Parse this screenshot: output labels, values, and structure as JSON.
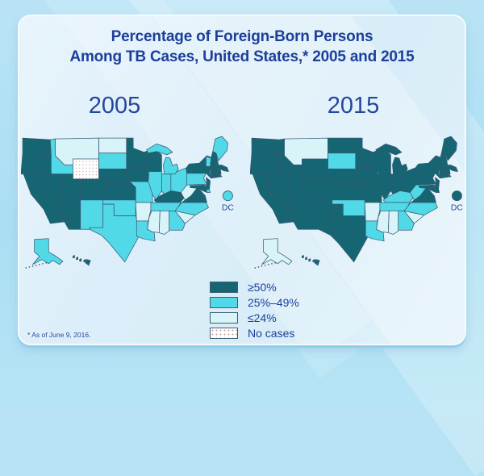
{
  "title": {
    "line1": "Percentage of Foreign-Born Persons",
    "line2": "Among TB Cases, United States,* 2005 and 2015"
  },
  "footnote": "*  As of June 9, 2016.",
  "legend": {
    "items": [
      {
        "key": "high",
        "label": "≥50%"
      },
      {
        "key": "mid",
        "label": "25%–49%"
      },
      {
        "key": "low",
        "label": "≤24%"
      },
      {
        "key": "none",
        "label": "No cases"
      }
    ]
  },
  "colors": {
    "high": "#156672",
    "mid": "#52d9e8",
    "low": "#d9f4f8",
    "none": "#ffffff",
    "dot": "#c79f9f",
    "state_border": "#375874",
    "title_text": "#1c3f9c",
    "label_text": "#24479e"
  },
  "maps": [
    {
      "year": "2005",
      "dc_label": "DC",
      "states": {
        "WA": "high",
        "OR": "high",
        "CA": "high",
        "NV": "high",
        "ID": "mid",
        "MT": "low",
        "WY": "none",
        "UT": "high",
        "CO": "high",
        "AZ": "high",
        "NM": "mid",
        "ND": "low",
        "SD": "mid",
        "NE": "high",
        "KS": "high",
        "OK": "mid",
        "TX": "mid",
        "MN": "high",
        "IA": "high",
        "MO": "mid",
        "AR": "low",
        "LA": "mid",
        "WI": "high",
        "IL": "mid",
        "MI": "mid",
        "IN": "mid",
        "OH": "mid",
        "KY": "high",
        "TN": "mid",
        "MS": "low",
        "AL": "low",
        "GA": "mid",
        "FL": "mid",
        "SC": "low",
        "NC": "mid",
        "VA": "high",
        "WV": "low",
        "MD": "high",
        "DE": "mid",
        "PA": "mid",
        "NJ": "high",
        "NY": "high",
        "CT": "high",
        "RI": "high",
        "MA": "high",
        "VT": "mid",
        "NH": "high",
        "ME": "mid",
        "AK": "mid",
        "HI": "high",
        "DC": "mid"
      }
    },
    {
      "year": "2015",
      "dc_label": "DC",
      "states": {
        "WA": "high",
        "OR": "high",
        "CA": "high",
        "NV": "high",
        "ID": "high",
        "MT": "low",
        "WY": "high",
        "UT": "high",
        "CO": "high",
        "AZ": "high",
        "NM": "high",
        "ND": "high",
        "SD": "mid",
        "NE": "high",
        "KS": "high",
        "OK": "mid",
        "TX": "high",
        "MN": "high",
        "IA": "high",
        "MO": "high",
        "AR": "low",
        "LA": "mid",
        "WI": "high",
        "IL": "high",
        "MI": "high",
        "IN": "high",
        "OH": "high",
        "KY": "mid",
        "TN": "mid",
        "MS": "low",
        "AL": "low",
        "GA": "mid",
        "FL": "high",
        "SC": "low",
        "NC": "mid",
        "VA": "high",
        "WV": "mid",
        "MD": "high",
        "DE": "high",
        "PA": "high",
        "NJ": "high",
        "NY": "high",
        "CT": "high",
        "RI": "high",
        "MA": "high",
        "VT": "high",
        "NH": "high",
        "ME": "high",
        "AK": "low",
        "HI": "high",
        "DC": "high"
      }
    }
  ]
}
